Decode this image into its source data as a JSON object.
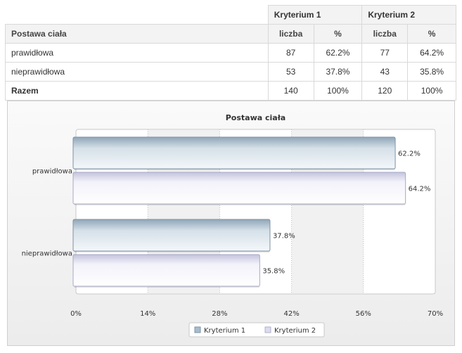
{
  "table": {
    "group_headers": [
      "Kryterium 1",
      "Kryterium 2"
    ],
    "row_header": "Postawa ciała",
    "sub_headers": [
      "liczba",
      "%",
      "liczba",
      "%"
    ],
    "rows": [
      {
        "label": "prawidłowa",
        "k1_count": "87",
        "k1_pct": "62.2%",
        "k2_count": "77",
        "k2_pct": "64.2%"
      },
      {
        "label": "nieprawidłowa",
        "k1_count": "53",
        "k1_pct": "37.8%",
        "k2_count": "43",
        "k2_pct": "35.8%"
      },
      {
        "label": "Razem",
        "k1_count": "140",
        "k1_pct": "100%",
        "k2_count": "120",
        "k2_pct": "100%"
      }
    ]
  },
  "chart_data": {
    "type": "bar",
    "orientation": "horizontal",
    "title": "Postawa ciała",
    "categories": [
      "prawidłowa",
      "nieprawidłowa"
    ],
    "series": [
      {
        "name": "Kryterium 1",
        "values": [
          62.2,
          37.8
        ],
        "color": "#a9bccb"
      },
      {
        "name": "Kryterium 2",
        "values": [
          64.2,
          35.8
        ],
        "color": "#dcdcec"
      }
    ],
    "data_labels": [
      [
        "62.2%",
        "37.8%"
      ],
      [
        "64.2%",
        "35.8%"
      ]
    ],
    "x_ticks": [
      "0%",
      "14%",
      "28%",
      "42%",
      "56%",
      "70%"
    ],
    "xlim": [
      0,
      70
    ],
    "grid": true,
    "legend_position": "bottom"
  }
}
